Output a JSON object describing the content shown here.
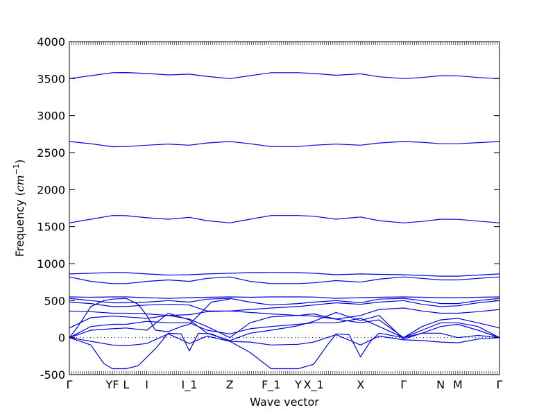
{
  "chart_data": {
    "type": "line",
    "xlabel": "Wave vector",
    "ylabel": "Frequency ($cm^{-1}$)",
    "ylabel_parts": {
      "text": "Frequency (",
      "unit": "cm",
      "exp": "−1",
      "close": ")"
    },
    "ylim": [
      -500,
      4000
    ],
    "yticks": [
      -500,
      0,
      500,
      1000,
      1500,
      2000,
      2500,
      3000,
      3500,
      4000
    ],
    "xlim": [
      0,
      1
    ],
    "x_ticks": [
      {
        "label": "Γ",
        "x": 0.0
      },
      {
        "label": "YF",
        "x": 0.1
      },
      {
        "label": "L",
        "x": 0.132
      },
      {
        "label": "I",
        "x": 0.18
      },
      {
        "label": "I_1",
        "x": 0.279
      },
      {
        "label": "Z",
        "x": 0.373
      },
      {
        "label": "F_1",
        "x": 0.469
      },
      {
        "label": "Y",
        "x": 0.532
      },
      {
        "label": "X_1",
        "x": 0.568
      },
      {
        "label": "X",
        "x": 0.677
      },
      {
        "label": "Γ",
        "x": 0.777
      },
      {
        "label": "N",
        "x": 0.863
      },
      {
        "label": "M",
        "x": 0.903
      },
      {
        "label": "Γ",
        "x": 1.0
      }
    ],
    "zero_line": true,
    "line_color": "#0000dd",
    "series": [
      {
        "x": [
          0,
          0.05,
          0.1,
          0.132,
          0.18,
          0.23,
          0.279,
          0.32,
          0.373,
          0.42,
          0.469,
          0.532,
          0.568,
          0.62,
          0.677,
          0.72,
          0.777,
          0.82,
          0.863,
          0.903,
          0.95,
          1.0
        ],
        "values": [
          3500,
          3540,
          3580,
          3582,
          3570,
          3550,
          3560,
          3530,
          3500,
          3540,
          3580,
          3580,
          3570,
          3545,
          3565,
          3525,
          3500,
          3515,
          3540,
          3538,
          3515,
          3500
        ]
      },
      {
        "x": [
          0,
          0.05,
          0.1,
          0.132,
          0.18,
          0.23,
          0.279,
          0.32,
          0.373,
          0.42,
          0.469,
          0.532,
          0.568,
          0.62,
          0.677,
          0.72,
          0.777,
          0.82,
          0.863,
          0.903,
          0.95,
          1.0
        ],
        "values": [
          2650,
          2620,
          2580,
          2582,
          2600,
          2615,
          2600,
          2630,
          2650,
          2620,
          2582,
          2582,
          2600,
          2615,
          2600,
          2630,
          2650,
          2640,
          2620,
          2620,
          2635,
          2650
        ]
      },
      {
        "x": [
          0,
          0.05,
          0.1,
          0.132,
          0.18,
          0.23,
          0.279,
          0.32,
          0.373,
          0.42,
          0.469,
          0.532,
          0.568,
          0.62,
          0.677,
          0.72,
          0.777,
          0.82,
          0.863,
          0.903,
          0.95,
          1.0
        ],
        "values": [
          1550,
          1600,
          1650,
          1648,
          1620,
          1600,
          1625,
          1580,
          1550,
          1600,
          1650,
          1650,
          1640,
          1600,
          1630,
          1580,
          1550,
          1570,
          1600,
          1598,
          1575,
          1550
        ]
      },
      {
        "x": [
          0,
          0.05,
          0.1,
          0.132,
          0.18,
          0.23,
          0.279,
          0.32,
          0.373,
          0.42,
          0.469,
          0.532,
          0.568,
          0.62,
          0.677,
          0.72,
          0.777,
          0.82,
          0.863,
          0.903,
          0.95,
          1.0
        ],
        "values": [
          860,
          870,
          880,
          878,
          860,
          845,
          850,
          860,
          870,
          878,
          880,
          878,
          870,
          850,
          860,
          855,
          850,
          840,
          830,
          830,
          845,
          860
        ]
      },
      {
        "x": [
          0,
          0.05,
          0.1,
          0.132,
          0.18,
          0.23,
          0.279,
          0.32,
          0.373,
          0.42,
          0.469,
          0.532,
          0.568,
          0.62,
          0.677,
          0.72,
          0.777,
          0.82,
          0.863,
          0.903,
          0.95,
          1.0
        ],
        "values": [
          820,
          760,
          730,
          730,
          760,
          780,
          760,
          800,
          820,
          760,
          730,
          730,
          740,
          770,
          750,
          790,
          820,
          800,
          780,
          780,
          800,
          820
        ]
      },
      {
        "x": [
          0,
          0.05,
          0.1,
          0.132,
          0.18,
          0.23,
          0.279,
          0.32,
          0.373,
          0.42,
          0.469,
          0.532,
          0.568,
          0.62,
          0.677,
          0.72,
          0.777,
          0.82,
          0.863,
          0.903,
          0.95,
          1.0
        ],
        "values": [
          550,
          545,
          550,
          550,
          540,
          530,
          540,
          545,
          550,
          545,
          550,
          550,
          548,
          530,
          540,
          545,
          550,
          545,
          540,
          540,
          545,
          550
        ]
      },
      {
        "x": [
          0,
          0.05,
          0.1,
          0.132,
          0.18,
          0.23,
          0.279,
          0.32,
          0.373,
          0.42,
          0.469,
          0.532,
          0.568,
          0.62,
          0.677,
          0.72,
          0.777,
          0.82,
          0.863,
          0.903,
          0.95,
          1.0
        ],
        "values": [
          530,
          500,
          470,
          470,
          480,
          500,
          480,
          520,
          530,
          480,
          440,
          460,
          480,
          500,
          470,
          520,
          530,
          500,
          460,
          460,
          500,
          530
        ]
      },
      {
        "x": [
          0,
          0.05,
          0.1,
          0.132,
          0.18,
          0.23,
          0.279,
          0.32,
          0.373,
          0.42,
          0.469,
          0.532,
          0.568,
          0.62,
          0.677,
          0.72,
          0.777,
          0.82,
          0.863,
          0.903,
          0.95,
          1.0
        ],
        "values": [
          480,
          460,
          420,
          420,
          440,
          450,
          440,
          360,
          360,
          380,
          400,
          420,
          440,
          470,
          450,
          480,
          500,
          450,
          420,
          430,
          470,
          500
        ]
      },
      {
        "x": [
          0,
          0.05,
          0.1,
          0.132,
          0.18,
          0.23,
          0.279,
          0.32,
          0.373,
          0.42,
          0.469,
          0.532,
          0.568,
          0.62,
          0.677,
          0.72,
          0.777,
          0.82,
          0.863,
          0.903,
          0.95,
          1.0
        ],
        "values": [
          360,
          350,
          330,
          330,
          320,
          300,
          310,
          350,
          360,
          340,
          320,
          300,
          320,
          250,
          300,
          380,
          400,
          360,
          330,
          330,
          350,
          380
        ]
      },
      {
        "x": [
          0,
          0.05,
          0.1,
          0.132,
          0.18,
          0.23,
          0.279,
          0.32,
          0.373,
          0.42,
          0.469,
          0.532,
          0.568,
          0.62,
          0.677,
          0.72,
          0.777,
          0.82,
          0.863,
          0.903,
          0.95,
          1.0
        ],
        "values": [
          130,
          270,
          290,
          280,
          260,
          300,
          250,
          150,
          0,
          200,
          280,
          300,
          290,
          250,
          200,
          240,
          0,
          150,
          240,
          260,
          200,
          130
        ]
      },
      {
        "x": [
          0,
          0.05,
          0.1,
          0.132,
          0.18,
          0.23,
          0.279,
          0.32,
          0.373,
          0.42,
          0.469,
          0.532,
          0.568,
          0.62,
          0.677,
          0.72,
          0.777,
          0.82,
          0.863,
          0.903,
          0.95,
          1.0
        ],
        "values": [
          0,
          150,
          180,
          180,
          220,
          200,
          200,
          100,
          50,
          120,
          150,
          180,
          200,
          200,
          260,
          150,
          0,
          100,
          200,
          200,
          150,
          0
        ]
      },
      {
        "x": [
          0,
          0.02,
          0.05,
          0.08,
          0.1,
          0.132,
          0.16,
          0.18,
          0.2,
          0.23,
          0.26,
          0.279,
          0.3,
          0.33,
          0.373
        ],
        "values": [
          0,
          150,
          420,
          500,
          520,
          530,
          450,
          300,
          100,
          80,
          150,
          180,
          300,
          480,
          520
        ]
      },
      {
        "x": [
          0,
          0.05,
          0.1,
          0.132,
          0.18,
          0.23,
          0.279,
          0.32,
          0.373,
          0.42,
          0.469,
          0.532,
          0.568,
          0.62,
          0.677,
          0.72,
          0.777,
          0.82,
          0.863,
          0.903,
          0.95,
          1.0
        ],
        "values": [
          0,
          100,
          120,
          130,
          100,
          330,
          240,
          60,
          -40,
          60,
          100,
          160,
          220,
          340,
          230,
          300,
          -20,
          60,
          150,
          180,
          100,
          0
        ]
      },
      {
        "x": [
          0,
          0.05,
          0.1,
          0.132,
          0.18,
          0.23,
          0.279,
          0.32,
          0.373,
          0.42,
          0.469,
          0.532,
          0.568,
          0.62,
          0.677,
          0.72,
          0.777,
          0.82,
          0.863,
          0.903,
          0.95,
          1.0
        ],
        "values": [
          0,
          -50,
          -100,
          -110,
          -80,
          50,
          -80,
          20,
          -50,
          -60,
          -100,
          -90,
          -60,
          40,
          -100,
          20,
          -30,
          -40,
          -60,
          -70,
          -20,
          0
        ]
      },
      {
        "x": [
          0,
          0.05,
          0.08,
          0.1,
          0.132,
          0.16,
          0.2,
          0.23,
          0.26,
          0.279,
          0.3,
          0.33,
          0.373,
          0.42,
          0.469,
          0.5,
          0.532,
          0.568,
          0.6,
          0.62,
          0.65,
          0.677,
          0.7,
          0.72,
          0.777,
          0.82,
          0.863,
          0.903,
          0.95,
          1.0
        ],
        "values": [
          0,
          -100,
          -350,
          -420,
          -420,
          -380,
          -150,
          60,
          50,
          -180,
          60,
          50,
          -50,
          -200,
          -420,
          -420,
          -420,
          -360,
          -100,
          50,
          40,
          -260,
          -50,
          60,
          0,
          60,
          60,
          0,
          30,
          0
        ]
      }
    ]
  }
}
